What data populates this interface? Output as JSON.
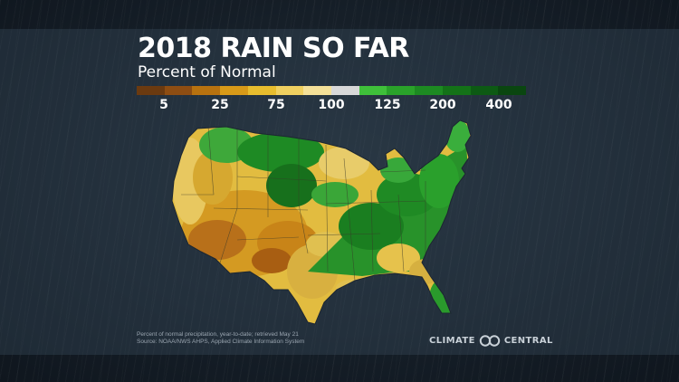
{
  "title": "2018 RAIN SO FAR",
  "subtitle": "Percent of Normal",
  "legend": {
    "colors": [
      "#6b3a10",
      "#8e4d12",
      "#b8720f",
      "#d89a18",
      "#e8bd2e",
      "#f0d060",
      "#f4e098",
      "#d8d8d8",
      "#3fc03a",
      "#2aa22a",
      "#1d8a22",
      "#147218",
      "#0d5a14",
      "#0a4610"
    ],
    "labels": [
      "5",
      "25",
      "75",
      "100",
      "125",
      "200",
      "400"
    ]
  },
  "map": {
    "region": "Contiguous United States",
    "palette": {
      "very_dry": "#b06a12",
      "dry": "#d4a024",
      "below_normal": "#e6c24c",
      "near_normal": "#ecd886",
      "above_normal": "#38a838",
      "wet": "#1f8a26",
      "very_wet": "#146a1c",
      "state_lines": "#3a3a2a"
    }
  },
  "footnote": {
    "line1": "Percent of normal precipitation, year-to-date; retrieved May 21",
    "line2": "Source: NOAA/NWS AHPS, Applied Climate Information System"
  },
  "brand": {
    "left": "CLIMATE",
    "right": "CENTRAL"
  }
}
